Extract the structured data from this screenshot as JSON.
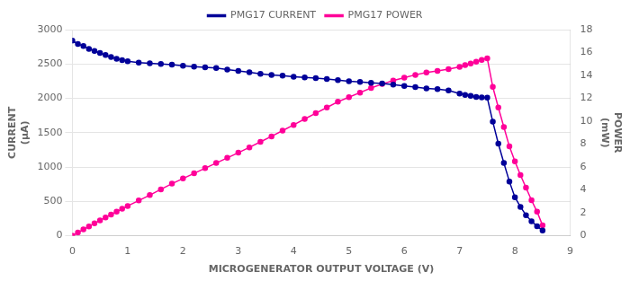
{
  "chart_data": {
    "type": "line",
    "xlabel": "MICROGENERATOR OUTPUT VOLTAGE (V)",
    "ylabel": "CURRENT\n(μA)",
    "y2label": "POWER\n(mW)",
    "x": [
      0.0,
      0.1,
      0.2,
      0.3,
      0.4,
      0.5,
      0.6,
      0.7,
      0.8,
      0.9,
      1.0,
      1.2,
      1.4,
      1.6,
      1.8,
      2.0,
      2.2,
      2.4,
      2.6,
      2.8,
      3.0,
      3.2,
      3.4,
      3.6,
      3.8,
      4.0,
      4.2,
      4.4,
      4.6,
      4.8,
      5.0,
      5.2,
      5.4,
      5.6,
      5.8,
      6.0,
      6.2,
      6.4,
      6.6,
      6.8,
      7.0,
      7.1,
      7.2,
      7.3,
      7.4,
      7.5,
      7.6,
      7.7,
      7.8,
      7.9,
      8.0,
      8.1,
      8.2,
      8.3,
      8.4,
      8.5
    ],
    "series": [
      {
        "name": "PMG17 CURRENT",
        "color": "#000099",
        "marker": "o",
        "axis": "y",
        "values": [
          2840,
          2790,
          2760,
          2720,
          2690,
          2660,
          2630,
          2600,
          2575,
          2555,
          2540,
          2520,
          2510,
          2500,
          2490,
          2475,
          2460,
          2450,
          2440,
          2420,
          2400,
          2380,
          2355,
          2340,
          2330,
          2315,
          2305,
          2295,
          2280,
          2265,
          2250,
          2240,
          2225,
          2215,
          2200,
          2180,
          2165,
          2145,
          2135,
          2115,
          2070,
          2050,
          2035,
          2020,
          2015,
          2010,
          1660,
          1340,
          1060,
          790,
          560,
          420,
          300,
          210,
          140,
          75
        ]
      },
      {
        "name": "PMG17 POWER",
        "color": "#FF0099",
        "marker": "o",
        "axis": "y2",
        "values": [
          0.0,
          0.28,
          0.55,
          0.82,
          1.08,
          1.34,
          1.6,
          1.85,
          2.1,
          2.35,
          2.6,
          3.08,
          3.55,
          4.05,
          4.55,
          5.0,
          5.45,
          5.9,
          6.35,
          6.8,
          7.25,
          7.72,
          8.2,
          8.68,
          9.18,
          9.68,
          10.2,
          10.7,
          11.2,
          11.7,
          12.1,
          12.5,
          12.9,
          13.25,
          13.55,
          13.8,
          14.05,
          14.25,
          14.4,
          14.55,
          14.75,
          14.9,
          15.05,
          15.2,
          15.35,
          15.5,
          13.0,
          11.2,
          9.5,
          7.8,
          6.5,
          5.3,
          4.2,
          3.1,
          2.1,
          0.9
        ]
      }
    ],
    "xlim": [
      0,
      9
    ],
    "xticks": [
      0,
      1,
      2,
      3,
      4,
      5,
      6,
      7,
      8,
      9
    ],
    "ylim": [
      0,
      3000
    ],
    "yticks": [
      0,
      500,
      1000,
      1500,
      2000,
      2500,
      3000
    ],
    "y2lim": [
      0,
      18
    ],
    "y2ticks": [
      0,
      2,
      4,
      6,
      8,
      10,
      12,
      14,
      16,
      18
    ],
    "grid": "y",
    "legend": "top"
  }
}
